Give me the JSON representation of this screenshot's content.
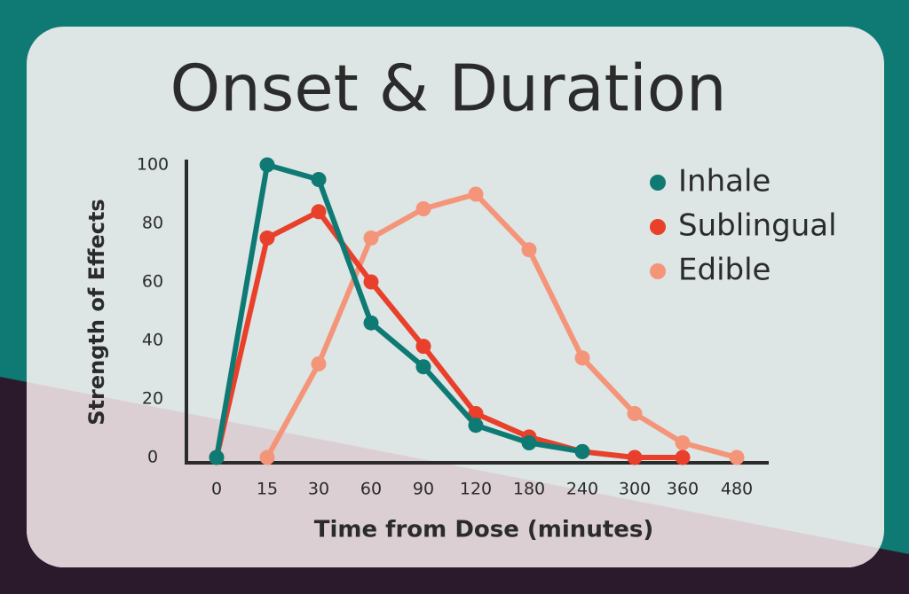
{
  "chart_data": {
    "type": "line",
    "title": "Onset & Duration",
    "x_label": "Time from Dose (minutes)",
    "y_label": "Strength of Effects",
    "categories": [
      "0",
      "15",
      "30",
      "60",
      "90",
      "120",
      "180",
      "240",
      "300",
      "360",
      "480"
    ],
    "series": [
      {
        "name": "Inhale",
        "color": "#0e7a73",
        "values": [
          0,
          100,
          95,
          46,
          31,
          11,
          5,
          2,
          null,
          null,
          null
        ]
      },
      {
        "name": "Sublingual",
        "color": "#e8402a",
        "values": [
          0,
          75,
          84,
          60,
          38,
          15,
          7,
          2,
          0,
          0,
          null
        ]
      },
      {
        "name": "Edible",
        "color": "#f4957a",
        "values": [
          null,
          0,
          32,
          75,
          85,
          90,
          71,
          34,
          15,
          5,
          0
        ]
      }
    ],
    "ylim": [
      0,
      100
    ],
    "yticks": [
      0,
      20,
      40,
      60,
      80,
      100
    ],
    "legend": "top-right"
  }
}
